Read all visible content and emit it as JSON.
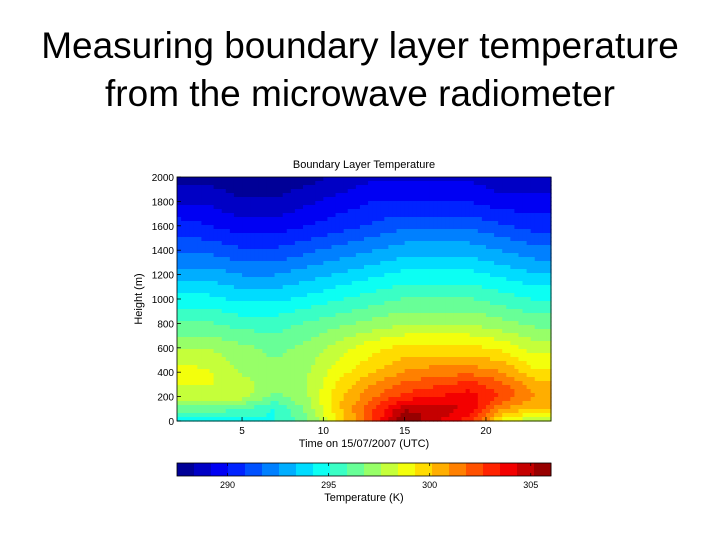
{
  "slide": {
    "title_line1": "Measuring boundary layer temperature",
    "title_line2": "from the microwave radiometer"
  },
  "chart_data": {
    "type": "heatmap",
    "title": "Boundary Layer Temperature",
    "xlabel": "Time on 15/07/2007  (UTC)",
    "ylabel": "Height (m)",
    "xlim": [
      1,
      24
    ],
    "ylim": [
      0,
      2000
    ],
    "xticks": [
      5,
      10,
      15,
      20
    ],
    "yticks": [
      0,
      200,
      400,
      600,
      800,
      1000,
      1200,
      1400,
      1600,
      1800,
      2000
    ],
    "colorbar": {
      "label": "Temperature  (K)",
      "min": 287.5,
      "max": 306,
      "ticks": [
        290,
        295,
        300,
        305
      ]
    },
    "colormap": "jet",
    "times": [
      1,
      3,
      5,
      7,
      9,
      11,
      13,
      15,
      17,
      19,
      21,
      23
    ],
    "heights": [
      0,
      100,
      200,
      300,
      400,
      600,
      800,
      1000,
      1200,
      1400,
      1600,
      1800,
      2000
    ],
    "temperatures": [
      [
        294.0,
        294.5,
        294.5,
        295.0,
        296.5,
        299.5,
        302.5,
        306.0,
        304.5,
        303.0,
        299.0,
        297.5
      ],
      [
        296.5,
        296.5,
        296.0,
        295.0,
        297.0,
        300.0,
        302.5,
        305.0,
        305.0,
        304.0,
        301.0,
        300.0
      ],
      [
        298.0,
        298.0,
        298.0,
        296.5,
        297.5,
        300.0,
        301.5,
        303.0,
        303.5,
        304.0,
        302.5,
        301.0
      ],
      [
        298.5,
        298.5,
        298.0,
        297.0,
        297.5,
        299.5,
        301.0,
        302.0,
        302.5,
        303.0,
        302.0,
        300.5
      ],
      [
        299.0,
        298.5,
        297.5,
        297.0,
        297.5,
        299.0,
        300.0,
        301.0,
        301.5,
        301.5,
        301.0,
        299.5
      ],
      [
        297.5,
        297.5,
        297.0,
        296.5,
        297.0,
        298.0,
        299.0,
        299.5,
        299.5,
        299.5,
        299.0,
        298.0
      ],
      [
        296.0,
        296.0,
        295.5,
        295.5,
        296.0,
        296.5,
        297.0,
        297.5,
        297.5,
        297.5,
        297.0,
        296.5
      ],
      [
        294.5,
        294.5,
        294.0,
        294.0,
        294.5,
        295.0,
        295.5,
        296.0,
        296.0,
        296.0,
        295.5,
        295.0
      ],
      [
        293.0,
        293.0,
        292.5,
        292.5,
        293.0,
        293.5,
        294.0,
        294.5,
        294.5,
        294.5,
        294.0,
        293.5
      ],
      [
        291.5,
        291.5,
        291.0,
        291.0,
        291.5,
        292.0,
        292.5,
        293.0,
        293.0,
        293.0,
        292.5,
        292.0
      ],
      [
        290.5,
        290.0,
        289.5,
        289.5,
        290.0,
        290.5,
        291.0,
        291.5,
        291.5,
        291.5,
        291.0,
        290.5
      ],
      [
        289.0,
        289.0,
        288.5,
        288.5,
        289.0,
        289.5,
        290.0,
        290.0,
        290.0,
        290.0,
        289.5,
        289.5
      ],
      [
        288.0,
        288.0,
        287.5,
        287.5,
        288.0,
        288.5,
        289.0,
        289.0,
        289.0,
        289.0,
        288.5,
        288.5
      ]
    ]
  }
}
